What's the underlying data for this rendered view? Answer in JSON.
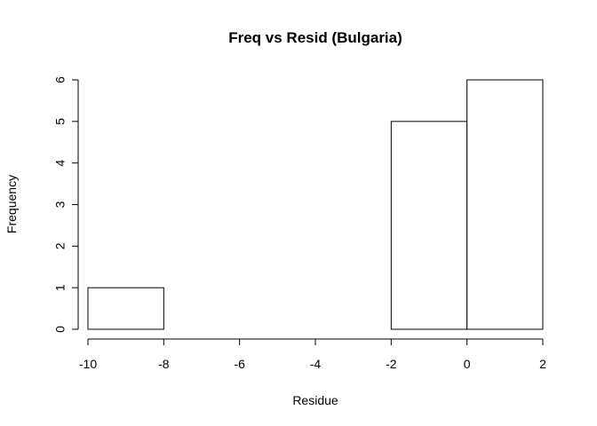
{
  "chart_data": {
    "type": "bar",
    "title": "Freq vs Resid (Bulgaria)",
    "xlabel": "Residue",
    "ylabel": "Frequency",
    "bins": [
      {
        "x0": -10,
        "x1": -8,
        "count": 1
      },
      {
        "x0": -8,
        "x1": -6,
        "count": 0
      },
      {
        "x0": -6,
        "x1": -4,
        "count": 0
      },
      {
        "x0": -4,
        "x1": -2,
        "count": 0
      },
      {
        "x0": -2,
        "x1": 0,
        "count": 5
      },
      {
        "x0": 0,
        "x1": 2,
        "count": 6
      }
    ],
    "xticks": [
      "-10",
      "-8",
      "-6",
      "-4",
      "-2",
      "0",
      "2"
    ],
    "yticks": [
      "0",
      "1",
      "2",
      "3",
      "4",
      "5",
      "6"
    ],
    "xlim": [
      -10,
      2
    ],
    "ylim": [
      0,
      6
    ],
    "grid": false,
    "bar_fill": "#ffffff",
    "bar_stroke": "#000000"
  }
}
